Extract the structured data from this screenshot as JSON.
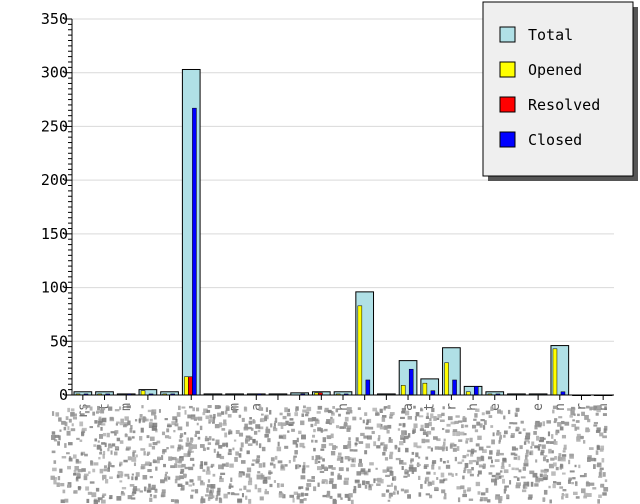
{
  "chart_data": {
    "type": "bar",
    "title": "",
    "xlabel": "",
    "ylabel": "",
    "ylim": [
      0,
      350
    ],
    "yticks": [
      0,
      50,
      100,
      150,
      200,
      250,
      300,
      350
    ],
    "grid": true,
    "legend_position": "top-right",
    "categories": [
      "rs",
      "t",
      "m",
      "",
      "",
      "",
      "",
      "m",
      "a",
      "",
      "",
      "",
      "h",
      "",
      "",
      "a",
      "t",
      "r",
      "h",
      "e",
      "",
      "e",
      "n",
      "r",
      "n"
    ],
    "series": [
      {
        "name": "Total",
        "color": "#b0e0e6",
        "overlay": true,
        "values": [
          3,
          3,
          1,
          5,
          3,
          303,
          1,
          1,
          1,
          1,
          2,
          3,
          3,
          96,
          1,
          32,
          15,
          44,
          8,
          3,
          1,
          1,
          46,
          0,
          0
        ]
      },
      {
        "name": "Opened",
        "color": "#ffff00",
        "values": [
          1,
          1,
          0,
          4,
          1,
          17,
          0,
          0,
          0,
          0,
          0,
          2,
          1,
          83,
          0,
          9,
          11,
          30,
          3,
          1,
          0,
          0,
          43,
          0,
          0
        ]
      },
      {
        "name": "Resolved",
        "color": "#ff0000",
        "values": [
          0,
          0,
          0,
          0,
          0,
          17,
          0,
          0,
          0,
          0,
          0,
          2,
          0,
          0,
          0,
          0,
          0,
          0,
          0,
          0,
          0,
          0,
          0,
          0,
          0
        ]
      },
      {
        "name": "Closed",
        "color": "#0000ff",
        "values": [
          1,
          1,
          1,
          1,
          1,
          267,
          0,
          0,
          1,
          0,
          1,
          0,
          1,
          14,
          0,
          24,
          4,
          14,
          8,
          1,
          0,
          0,
          3,
          0,
          0
        ]
      }
    ]
  }
}
